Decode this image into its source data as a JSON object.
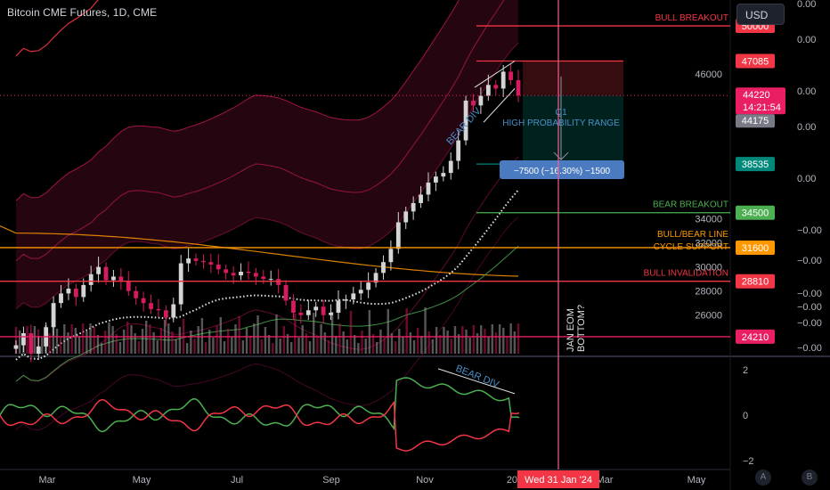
{
  "symbol_title": "Bitcoin CME Futures, 1D, CME",
  "currency_button": "USD",
  "scale_buttons": [
    "A",
    "B"
  ],
  "colors": {
    "up": "#d4d4d4",
    "down": "#d81b60",
    "level_red": "#f23645",
    "level_green": "#4caf50",
    "level_orange": "#ff9800",
    "price_tag": "#e91e63",
    "crosshair": "#f06292",
    "osc_green": "#4caf50",
    "osc_red": "#f23645",
    "bear_div": "#4a90c8"
  },
  "price_levels": [
    {
      "price": 50000,
      "tag": "50000",
      "label": "BULL BREAKOUT",
      "color": "#f23645"
    },
    {
      "price": 47085,
      "tag": "47085",
      "label": "",
      "color": "#f23645"
    },
    {
      "price": 38535,
      "tag": "38535",
      "label": "",
      "color": "#00897b"
    },
    {
      "price": 34500,
      "tag": "34500",
      "label": "BEAR BREAKOUT",
      "color": "#4caf50"
    },
    {
      "price": 31600,
      "tag": "31600",
      "label": "BULL/BEAR LINE",
      "label2": "CYCLE SUPPORT",
      "color": "#ff9800"
    },
    {
      "price": 28810,
      "tag": "28810",
      "label": "BULL INVALIDATION",
      "color": "#f23645"
    },
    {
      "price": 24210,
      "tag": "24210",
      "label": "",
      "color": "#e91e63"
    }
  ],
  "last_price": {
    "price": 44220,
    "tag": "44220",
    "countdown": "14:21:54"
  },
  "prev_close_tag": "44175",
  "annotations": {
    "bear_div_price": "BEAR DIV",
    "bear_div_osc": "BEAR DIV",
    "q1": "Q1",
    "range_label": "HIGH PROBABILITY RANGE",
    "measure_box": "−7500 (−16.30%) −1500",
    "vertical_note_1": "JAN EOM",
    "vertical_note_2": "BOTTOM?"
  },
  "crosshair_date": "Wed 31 Jan '24",
  "chart_data": {
    "type": "candlestick",
    "x_axis_labels": [
      "Mar",
      "May",
      "Jul",
      "Sep",
      "Nov",
      "202",
      "Mar",
      "May"
    ],
    "y_axis": {
      "ticks": [
        46000,
        34000,
        32000,
        30000,
        28000,
        26000
      ],
      "min": 22800,
      "max": 52000
    },
    "right_axis_ticks": [
      "0.00",
      "0.00",
      "0.00",
      "0.00",
      "0.00",
      "−0.00",
      "−0.00",
      "−0.00",
      "−0.00",
      "−0.00",
      "−0.00"
    ],
    "oscillator_axis": {
      "ticks": [
        2,
        0,
        -2
      ],
      "min": -2.2,
      "max": 2.4
    },
    "series": [
      {
        "name": "",
        "kind": "close",
        "values": [
          23500,
          24500,
          22800,
          23400,
          25000,
          27000,
          27800,
          28200,
          27500,
          28500,
          29400,
          30000,
          28900,
          29200,
          28800,
          28000,
          27400,
          27000,
          26500,
          26400,
          25800,
          26900,
          30300,
          30700,
          30500,
          30400,
          30200,
          29800,
          29500,
          29300,
          29600,
          29500,
          29200,
          29000,
          29000,
          28500,
          27200,
          26200,
          26000,
          26400,
          26700,
          26000,
          26200,
          27200,
          27300,
          27800,
          28100,
          28700,
          29500,
          30400,
          31500,
          33700,
          34600,
          35300,
          36000,
          37000,
          37500,
          37800,
          38800,
          40500,
          43800,
          43400,
          44200,
          45100,
          44800,
          46200,
          45500,
          44220
        ]
      }
    ]
  }
}
